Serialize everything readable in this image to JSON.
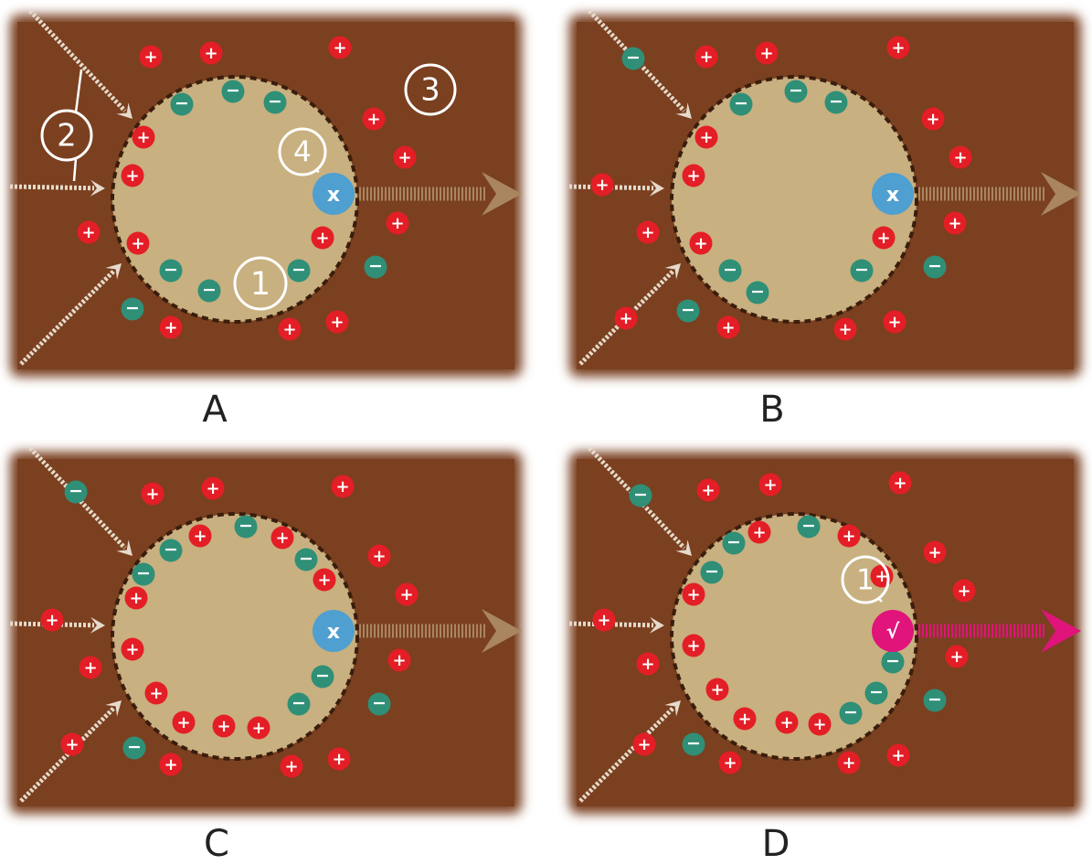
{
  "colors": {
    "background": "#7a4020",
    "cell_fill": "#c8b080",
    "membrane": "#3a1d0c",
    "positive_ion": "#e41e26",
    "negative_ion": "#2f8f77",
    "receptor_closed": "#4f9fd0",
    "receptor_open": "#e0147a",
    "arrow_out_closed": "#a98560",
    "arrow_out_open": "#e0147a",
    "arrow_in": "#e6dacb",
    "callout": "#ffffff"
  },
  "symbols": {
    "positive": "+",
    "negative": "−",
    "blocked": "x",
    "open": "√"
  },
  "panels": [
    {
      "id": "A",
      "label": "A",
      "receptor_state": "blocked",
      "callouts": [
        {
          "text": "1",
          "target": "cell-interior"
        },
        {
          "text": "2",
          "target": "incoming-arrows"
        },
        {
          "text": "3",
          "target": "extracellular-space"
        },
        {
          "text": "4",
          "target": "receptor"
        }
      ]
    },
    {
      "id": "B",
      "label": "B",
      "receptor_state": "blocked",
      "callouts": []
    },
    {
      "id": "C",
      "label": "C",
      "receptor_state": "blocked",
      "callouts": []
    },
    {
      "id": "D",
      "label": "D",
      "receptor_state": "open",
      "callouts": [
        {
          "text": "1",
          "target": "receptor"
        }
      ]
    }
  ]
}
